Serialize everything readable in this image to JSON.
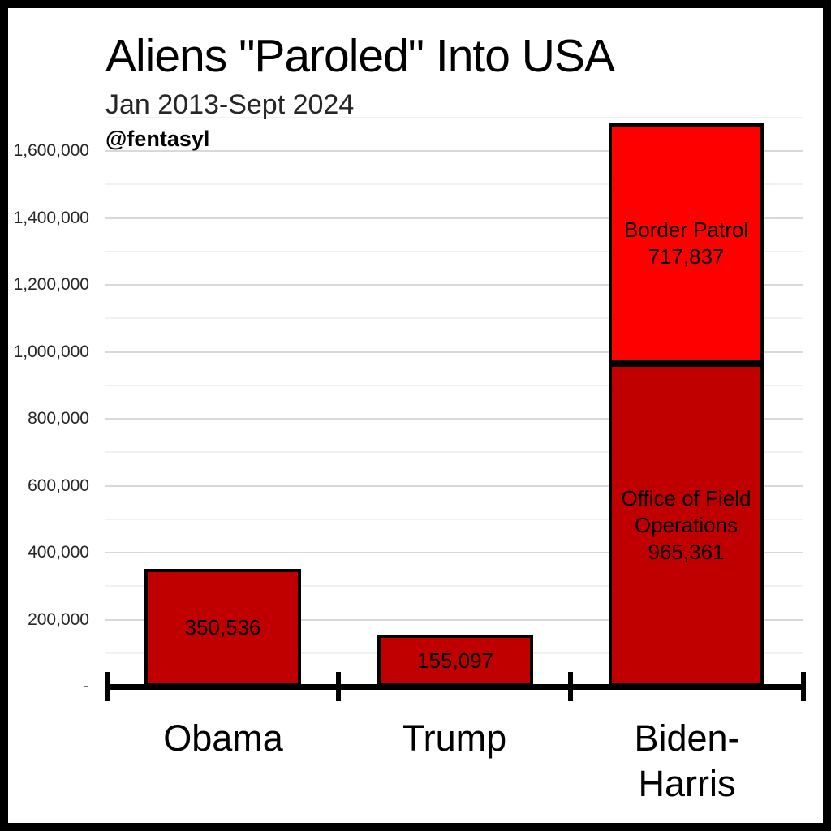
{
  "header": {
    "title": "Aliens \"Paroled\" Into USA",
    "subtitle": "Jan 2013-Sept 2024",
    "attribution": "@fentasyl"
  },
  "chart_data": {
    "type": "bar",
    "stacked": true,
    "title": "Aliens \"Paroled\" Into USA",
    "subtitle": "Jan 2013-Sept 2024",
    "categories": [
      "Obama",
      "Trump",
      "Biden-Harris"
    ],
    "bars": [
      {
        "category": "Obama",
        "total": 350536,
        "segments": [
          {
            "name": "",
            "value": 350536,
            "value_label": "350,536",
            "color": "#c00000"
          }
        ]
      },
      {
        "category": "Trump",
        "total": 155097,
        "segments": [
          {
            "name": "",
            "value": 155097,
            "value_label": "155,097",
            "color": "#c00000"
          }
        ]
      },
      {
        "category": "Biden-Harris",
        "total": 1683198,
        "segments": [
          {
            "name": "Office of Field Operations",
            "value": 965361,
            "value_label": "965,361",
            "color": "#c00000"
          },
          {
            "name": "Border Patrol",
            "value": 717837,
            "value_label": "717,837",
            "color": "#ff0000"
          }
        ]
      }
    ],
    "y_axis": {
      "min": 0,
      "max": 1700000,
      "label_interval": 200000,
      "gridline_interval": 100000,
      "tick_labels_top_to_bottom": [
        "1,600,000",
        "1,400,000",
        "1,200,000",
        "1,000,000",
        "800,000",
        "600,000",
        "400,000",
        "200,000",
        "-"
      ]
    },
    "legend": "none",
    "colors": {
      "dark_red": "#c00000",
      "bright_red": "#ff0000",
      "axis": "#000000",
      "gridline_major": "#d9d9d9",
      "gridline_minor": "#f1f1f1"
    }
  }
}
